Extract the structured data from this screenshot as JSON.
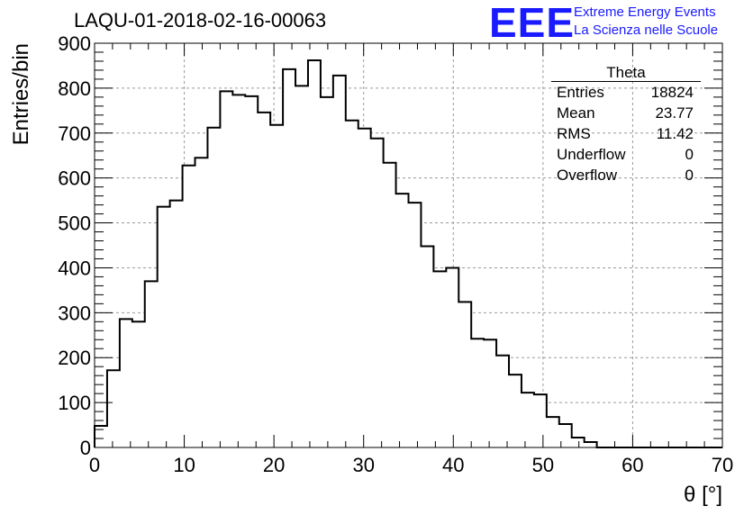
{
  "header": {
    "title": "LAQU-01-2018-02-16-00063",
    "logo_text": "EEE",
    "logo_line1": "Extreme Energy Events",
    "logo_line2": "La Scienza nelle Scuole"
  },
  "stats_box": {
    "title": "Theta",
    "rows": [
      {
        "label": "Entries",
        "value": "18824"
      },
      {
        "label": "Mean",
        "value": "23.77"
      },
      {
        "label": "RMS",
        "value": "11.42"
      },
      {
        "label": "Underflow",
        "value": "0"
      },
      {
        "label": "Overflow",
        "value": "0"
      }
    ]
  },
  "chart_data": {
    "type": "histogram",
    "title": "LAQU-01-2018-02-16-00063",
    "xlabel": "θ [°]",
    "ylabel": "Entries/bin",
    "xlim": [
      0,
      70
    ],
    "ylim": [
      0,
      900
    ],
    "bin_width": 1.4,
    "x_ticks": [
      0,
      10,
      20,
      30,
      40,
      50,
      60,
      70
    ],
    "y_ticks": [
      0,
      100,
      200,
      300,
      400,
      500,
      600,
      700,
      800,
      900
    ],
    "grid": true,
    "values": [
      48,
      172,
      286,
      280,
      370,
      536,
      550,
      628,
      645,
      712,
      793,
      785,
      782,
      746,
      718,
      842,
      805,
      862,
      780,
      828,
      728,
      710,
      688,
      634,
      565,
      545,
      448,
      392,
      400,
      324,
      242,
      240,
      205,
      162,
      122,
      118,
      68,
      52,
      22,
      12,
      0,
      0,
      0,
      0,
      0,
      0,
      0,
      0,
      0,
      0
    ]
  }
}
